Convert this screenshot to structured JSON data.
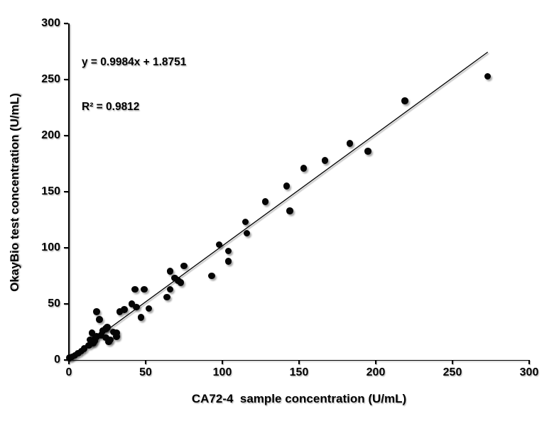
{
  "chart_data": {
    "type": "scatter",
    "title": "",
    "xlabel": "CA72-4  sample concentration (U/mL)",
    "ylabel": "OkayBio test concentration (U/mL)",
    "xlim": [
      0,
      300
    ],
    "ylim": [
      0,
      300
    ],
    "x_ticks": [
      0,
      50,
      100,
      150,
      200,
      250,
      300
    ],
    "y_ticks": [
      0,
      50,
      100,
      150,
      200,
      250,
      300
    ],
    "grid": false,
    "legend": "none",
    "marker_color": "#050505",
    "line_color": "#000000",
    "background_color": "#ffffff",
    "annotation": {
      "line1": "y = 0.9984x + 1.8751",
      "line2": "R² = 0.9812"
    },
    "trendline": {
      "slope": 0.9984,
      "intercept": 1.8751,
      "x_start": 0,
      "x_end": 273
    },
    "points": [
      [
        0.5,
        2
      ],
      [
        2,
        3
      ],
      [
        4,
        4
      ],
      [
        6,
        6
      ],
      [
        8,
        8
      ],
      [
        10,
        10
      ],
      [
        13,
        13
      ],
      [
        15,
        15
      ],
      [
        14,
        18
      ],
      [
        16,
        15
      ],
      [
        17,
        17
      ],
      [
        17,
        19
      ],
      [
        15,
        24
      ],
      [
        18,
        21
      ],
      [
        21,
        22
      ],
      [
        22,
        26
      ],
      [
        24,
        28
      ],
      [
        24,
        20
      ],
      [
        25,
        29
      ],
      [
        26,
        16
      ],
      [
        27,
        18
      ],
      [
        29,
        25
      ],
      [
        31,
        21
      ],
      [
        31,
        24
      ],
      [
        18,
        43
      ],
      [
        20,
        36
      ],
      [
        33,
        43
      ],
      [
        36,
        45
      ],
      [
        41,
        50
      ],
      [
        44,
        47
      ],
      [
        47,
        38
      ],
      [
        52,
        46
      ],
      [
        43,
        63
      ],
      [
        49,
        63
      ],
      [
        64,
        56
      ],
      [
        66,
        63
      ],
      [
        66,
        79
      ],
      [
        69,
        73
      ],
      [
        71,
        71
      ],
      [
        73,
        69
      ],
      [
        75,
        84
      ],
      [
        93,
        75
      ],
      [
        98,
        103
      ],
      [
        104,
        97
      ],
      [
        104,
        88
      ],
      [
        115,
        123
      ],
      [
        116,
        113
      ],
      [
        128,
        141
      ],
      [
        142,
        155
      ],
      [
        144,
        133
      ],
      [
        153,
        171
      ],
      [
        167,
        178
      ],
      [
        183,
        193
      ],
      [
        195,
        186
      ],
      [
        219,
        231
      ],
      [
        273,
        253
      ]
    ]
  }
}
